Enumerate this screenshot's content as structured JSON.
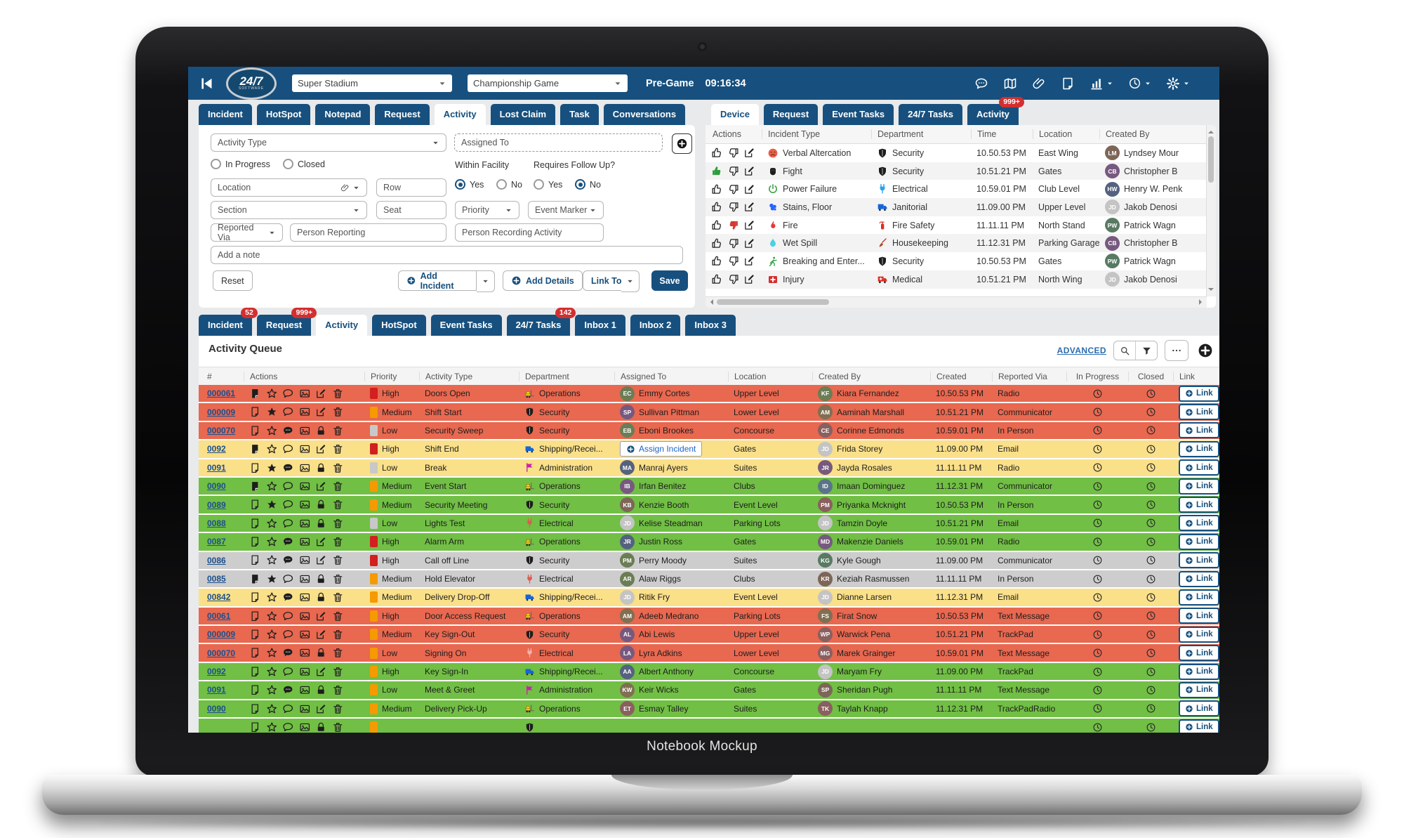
{
  "footer_label": "Notebook Mockup",
  "colors": {
    "navy": "#17507e",
    "badge_red": "#d32f2f",
    "row_red": "#e86850",
    "row_yellow": "#fae089",
    "row_green": "#71bf45",
    "row_gray": "#cdcdcd",
    "chip_high": "#d21f1f",
    "chip_medium": "#f59a00",
    "chip_low": "#c8c8c8"
  },
  "topbar": {
    "brand": "24/7",
    "brand_sub": "SOFTWARE",
    "venue_select": "Super Stadium",
    "event_select": "Championship Game",
    "phase_label": "Pre-Game",
    "clock": "09:16:34",
    "icons": [
      "chat-bubble-icon",
      "map-icon",
      "paperclip-icon",
      "notepad-icon",
      "chart-icon",
      "clock-icon",
      "gear-icon"
    ]
  },
  "left_panel": {
    "tabs": [
      {
        "label": "Incident"
      },
      {
        "label": "HotSpot"
      },
      {
        "label": "Notepad"
      },
      {
        "label": "Request"
      },
      {
        "label": "Activity",
        "active": true
      },
      {
        "label": "Lost Claim"
      },
      {
        "label": "Task"
      },
      {
        "label": "Conversations"
      }
    ],
    "form": {
      "activity_type_placeholder": "Activity Type",
      "assigned_to_placeholder": "Assigned To",
      "in_progress_label": "In Progress",
      "closed_label": "Closed",
      "within_facility_label": "Within Facility",
      "requires_follow_up_label": "Requires Follow Up?",
      "location_placeholder": "Location",
      "row_placeholder": "Row",
      "section_placeholder": "Section",
      "seat_placeholder": "Seat",
      "priority_placeholder": "Priority",
      "event_marker_placeholder": "Event Marker",
      "reported_via_placeholder": "Reported Via",
      "person_reporting_placeholder": "Person Reporting",
      "person_recording_placeholder": "Person Recording Activity",
      "note_placeholder": "Add a note",
      "yes_label": "Yes",
      "no_label": "No",
      "within_facility_value": "Yes",
      "requires_follow_up_value": "No",
      "reset_label": "Reset",
      "add_incident_label": "Add Incident",
      "add_details_label": "Add Details",
      "link_to_label": "Link To",
      "save_label": "Save"
    }
  },
  "device_panel": {
    "tabs": [
      {
        "label": "Device",
        "active": true
      },
      {
        "label": "Request"
      },
      {
        "label": "Event Tasks"
      },
      {
        "label": "24/7 Tasks"
      },
      {
        "label": "Activity",
        "badge": "999+"
      }
    ],
    "columns": [
      "Actions",
      "Incident Type",
      "Department",
      "Time",
      "Location",
      "Created By"
    ],
    "rows": [
      {
        "vote": "none",
        "incident": "Verbal Altercation",
        "incident_icon": "angry-face",
        "dept": "Security",
        "dept_icon": "shield",
        "dept_color": "#1d1d1d",
        "time": "10.50.53 PM",
        "location": "East Wing",
        "created_by": "Lyndsey Mour",
        "avatar": ""
      },
      {
        "vote": "up",
        "incident": "Fight",
        "incident_icon": "fist",
        "dept": "Security",
        "dept_icon": "shield",
        "dept_color": "#1d1d1d",
        "time": "10.51.21 PM",
        "location": "Gates",
        "created_by": "Christopher B",
        "avatar": ""
      },
      {
        "vote": "none",
        "incident": "Power Failure",
        "incident_icon": "power",
        "dept": "Electrical",
        "dept_icon": "plug",
        "dept_color": "#29a3e8",
        "time": "10.59.01 PM",
        "location": "Club Level",
        "created_by": "Henry W. Penk",
        "avatar": ""
      },
      {
        "vote": "none",
        "incident": "Stains, Floor",
        "incident_icon": "stain",
        "dept": "Janitorial",
        "dept_icon": "truck",
        "dept_color": "#1565d8",
        "time": "11.09.00 PM",
        "location": "Upper Level",
        "created_by": "Jakob Denosi",
        "avatar": "JD"
      },
      {
        "vote": "down",
        "incident": "Fire",
        "incident_icon": "flame",
        "dept": "Fire Safety",
        "dept_icon": "extinguisher",
        "dept_color": "#d93025",
        "time": "11.11.11 PM",
        "location": "North Stand",
        "created_by": "Patrick Wagn",
        "avatar": ""
      },
      {
        "vote": "none",
        "incident": "Wet Spill",
        "incident_icon": "droplet",
        "dept": "Housekeeping",
        "dept_icon": "broom",
        "dept_color": "#b0492f",
        "time": "11.12.31 PM",
        "location": "Parking Garage",
        "created_by": "Christopher B",
        "avatar": ""
      },
      {
        "vote": "none",
        "incident": "Breaking and Enter...",
        "incident_icon": "runner",
        "dept": "Security",
        "dept_icon": "shield",
        "dept_color": "#1d1d1d",
        "time": "10.50.53 PM",
        "location": "Gates",
        "created_by": "Patrick Wagn",
        "avatar": ""
      },
      {
        "vote": "none",
        "incident": "Injury",
        "incident_icon": "medical-cross",
        "dept": "Medical",
        "dept_icon": "ambulance",
        "dept_color": "#d93025",
        "time": "10.51.21 PM",
        "location": "North Wing",
        "created_by": "Jakob Denosi",
        "avatar": "JD"
      }
    ]
  },
  "queue_panel": {
    "tabs": [
      {
        "label": "Incident",
        "badge": "52"
      },
      {
        "label": "Request",
        "badge": "999+"
      },
      {
        "label": "Activity",
        "active": true
      },
      {
        "label": "HotSpot"
      },
      {
        "label": "Event Tasks"
      },
      {
        "label": "24/7 Tasks",
        "badge": "142"
      },
      {
        "label": "Inbox 1"
      },
      {
        "label": "Inbox 2"
      },
      {
        "label": "Inbox 3"
      }
    ],
    "title": "Activity Queue",
    "advanced_label": "ADVANCED",
    "columns": [
      "#",
      "Actions",
      "Priority",
      "Activity Type",
      "Department",
      "Assigned To",
      "Location",
      "Created By",
      "Created",
      "Reported Via",
      "In Progress",
      "Closed",
      "Link"
    ],
    "link_label": "Link",
    "assign_button_label": "Assign Incident",
    "rows": [
      {
        "id": "000061",
        "bg": "red",
        "actions": [
          "note-filled",
          "star",
          "chat",
          "image",
          "edit",
          "trash"
        ],
        "priority": "High",
        "chip": "#d21f1f",
        "type": "Doors Open",
        "dept": "Operations",
        "dept_icon": "forklift",
        "dept_color": "",
        "assigned": "Emmy Cortes",
        "assigned_avatar": "",
        "location": "Upper Level",
        "created_by": "Kiara Fernandez",
        "created_by_avatar": "",
        "created": "10.50.53 PM",
        "via": "Radio"
      },
      {
        "id": "000009",
        "bg": "red",
        "actions": [
          "note",
          "star-filled",
          "chat",
          "image",
          "edit",
          "trash"
        ],
        "priority": "Medium",
        "chip": "#f59a00",
        "type": "Shift Start",
        "dept": "Security",
        "dept_icon": "shield",
        "dept_color": "#1d1d1d",
        "assigned": "Sullivan Pittman",
        "assigned_avatar": "",
        "location": "Lower Level",
        "created_by": "Aaminah Marshall",
        "created_by_avatar": "",
        "created": "10.51.21 PM",
        "via": "Communicator"
      },
      {
        "id": "000070",
        "bg": "red",
        "actions": [
          "note",
          "star",
          "chat-filled",
          "image",
          "lock",
          "trash"
        ],
        "priority": "Low",
        "chip": "#c8c8c8",
        "type": "Security Sweep",
        "dept": "Security",
        "dept_icon": "shield",
        "dept_color": "#1d1d1d",
        "assigned": "Eboni Brookes",
        "assigned_avatar": "",
        "location": "Concourse",
        "created_by": "Corinne Edmonds",
        "created_by_avatar": "",
        "created": "10.59.01 PM",
        "via": "In Person"
      },
      {
        "id": "0092",
        "bg": "yellow",
        "actions": [
          "note-filled",
          "star",
          "chat",
          "image",
          "edit",
          "trash"
        ],
        "priority": "High",
        "chip": "#d21f1f",
        "type": "Shift End",
        "dept": "Shipping/Recei...",
        "dept_icon": "truck",
        "dept_color": "#1565d8",
        "assigned": "",
        "assign_button": true,
        "location": "Gates",
        "created_by": "Frida Storey",
        "created_by_avatar": "JD",
        "created": "11.09.00 PM",
        "via": "Email"
      },
      {
        "id": "0091",
        "bg": "yellow",
        "actions": [
          "note",
          "star-filled",
          "chat-filled",
          "image",
          "lock",
          "trash"
        ],
        "priority": "Low",
        "chip": "#c8c8c8",
        "type": "Break",
        "dept": "Administration",
        "dept_icon": "flag",
        "dept_color": "#cc1fae",
        "assigned": "Manraj Ayers",
        "assigned_avatar": "",
        "location": "Suites",
        "created_by": "Jayda Rosales",
        "created_by_avatar": "",
        "created": "11.11.11 PM",
        "via": "Radio"
      },
      {
        "id": "0090",
        "bg": "green",
        "actions": [
          "note-filled",
          "star",
          "chat",
          "image",
          "edit",
          "trash"
        ],
        "priority": "Medium",
        "chip": "#f59a00",
        "type": "Event Start",
        "dept": "Operations",
        "dept_icon": "forklift",
        "dept_color": "",
        "assigned": "Irfan Benitez",
        "assigned_avatar": "",
        "location": "Clubs",
        "created_by": "Imaan Dominguez",
        "created_by_avatar": "",
        "created": "11.12.31 PM",
        "via": "Communicator"
      },
      {
        "id": "0089",
        "bg": "green",
        "actions": [
          "note",
          "star-filled",
          "chat",
          "image",
          "lock",
          "trash"
        ],
        "priority": "Medium",
        "chip": "#f59a00",
        "type": "Security Meeting",
        "dept": "Security",
        "dept_icon": "shield",
        "dept_color": "#1d1d1d",
        "assigned": "Kenzie Booth",
        "assigned_avatar": "",
        "location": "Event Level",
        "created_by": "Priyanka Mcknight",
        "created_by_avatar": "",
        "created": "10.50.53 PM",
        "via": "In Person"
      },
      {
        "id": "0088",
        "bg": "green",
        "actions": [
          "note",
          "star",
          "chat",
          "image",
          "lock",
          "trash"
        ],
        "priority": "Low",
        "chip": "#c8c8c8",
        "type": "Lights Test",
        "dept": "Electrical",
        "dept_icon": "plug",
        "dept_color": "#e05a4e",
        "assigned": "Kelise Steadman",
        "assigned_avatar": "JD",
        "location": "Parking Lots",
        "created_by": "Tamzin Doyle",
        "created_by_avatar": "JD",
        "created": "10.51.21 PM",
        "via": "Email"
      },
      {
        "id": "0087",
        "bg": "green",
        "actions": [
          "note",
          "star",
          "chat-filled",
          "image",
          "edit",
          "trash"
        ],
        "priority": "High",
        "chip": "#d21f1f",
        "type": "Alarm Arm",
        "dept": "Operations",
        "dept_icon": "forklift",
        "dept_color": "",
        "assigned": "Justin Ross",
        "assigned_avatar": "",
        "location": "Gates",
        "created_by": "Makenzie Daniels",
        "created_by_avatar": "",
        "created": "10.59.01 PM",
        "via": "Radio"
      },
      {
        "id": "0086",
        "bg": "gray",
        "actions": [
          "note",
          "star",
          "chat-filled",
          "image",
          "edit",
          "trash"
        ],
        "priority": "High",
        "chip": "#d21f1f",
        "type": "Call off Line",
        "dept": "Security",
        "dept_icon": "shield",
        "dept_color": "#1d1d1d",
        "assigned": "Perry Moody",
        "assigned_avatar": "",
        "location": "Suites",
        "created_by": "Kyle Gough",
        "created_by_avatar": "",
        "created": "11.09.00 PM",
        "via": "Communicator"
      },
      {
        "id": "0085",
        "bg": "gray",
        "actions": [
          "note-filled",
          "star-filled",
          "chat",
          "image",
          "lock",
          "trash"
        ],
        "priority": "Medium",
        "chip": "#f59a00",
        "type": "Hold Elevator",
        "dept": "Electrical",
        "dept_icon": "plug",
        "dept_color": "#e05a4e",
        "assigned": "Alaw Riggs",
        "assigned_avatar": "",
        "location": "Clubs",
        "created_by": "Keziah Rasmussen",
        "created_by_avatar": "",
        "created": "11.11.11 PM",
        "via": "In Person"
      },
      {
        "id": "00842",
        "bg": "yellow",
        "actions": [
          "note",
          "star",
          "chat-filled",
          "image",
          "lock",
          "trash"
        ],
        "priority": "Medium",
        "chip": "#f59a00",
        "type": "Delivery Drop-Off",
        "dept": "Shipping/Recei...",
        "dept_icon": "truck",
        "dept_color": "#1565d8",
        "assigned": "Ritik Fry",
        "assigned_avatar": "JD",
        "location": "Event Level",
        "created_by": "Dianne Larsen",
        "created_by_avatar": "JD",
        "created": "11.12.31 PM",
        "via": "Email"
      },
      {
        "id": "00061",
        "bg": "red",
        "actions": [
          "note",
          "star",
          "chat",
          "image",
          "edit",
          "trash"
        ],
        "priority": "High",
        "chip": "#f59a00",
        "type": "Door Access Request",
        "dept": "Operations",
        "dept_icon": "forklift",
        "dept_color": "",
        "assigned": "Adeeb Medrano",
        "assigned_avatar": "",
        "location": "Parking Lots",
        "created_by": "Firat Snow",
        "created_by_avatar": "",
        "created": "10.50.53 PM",
        "via": "Text Message"
      },
      {
        "id": "000009",
        "bg": "red",
        "actions": [
          "note",
          "star",
          "chat",
          "image",
          "edit",
          "trash"
        ],
        "priority": "Medium",
        "chip": "#f59a00",
        "type": "Key Sign-Out",
        "dept": "Security",
        "dept_icon": "shield",
        "dept_color": "#1d1d1d",
        "assigned": "Abi Lewis",
        "assigned_avatar": "",
        "location": "Upper Level",
        "created_by": "Warwick Pena",
        "created_by_avatar": "",
        "created": "10.51.21 PM",
        "via": "TrackPad"
      },
      {
        "id": "000070",
        "bg": "red",
        "actions": [
          "note",
          "star",
          "chat-filled",
          "image",
          "lock",
          "trash"
        ],
        "priority": "Low",
        "chip": "#f59a00",
        "type": "Signing On",
        "dept": "Electrical",
        "dept_icon": "plug",
        "dept_color": "#f0b1a9",
        "assigned": "Lyra Adkins",
        "assigned_avatar": "",
        "location": "Lower Level",
        "created_by": "Marek Grainger",
        "created_by_avatar": "",
        "created": "10.59.01 PM",
        "via": "Text Message"
      },
      {
        "id": "0092",
        "bg": "green",
        "actions": [
          "note",
          "star",
          "chat",
          "image",
          "edit",
          "trash"
        ],
        "priority": "High",
        "chip": "#f59a00",
        "type": "Key Sign-In",
        "dept": "Shipping/Recei...",
        "dept_icon": "truck",
        "dept_color": "#1565d8",
        "assigned": "Albert Anthony",
        "assigned_avatar": "",
        "location": "Concourse",
        "created_by": "Maryam Fry",
        "created_by_avatar": "JD",
        "created": "11.09.00 PM",
        "via": "TrackPad"
      },
      {
        "id": "0091",
        "bg": "green",
        "actions": [
          "note",
          "star",
          "chat-filled",
          "image",
          "lock",
          "trash"
        ],
        "priority": "Low",
        "chip": "#f59a00",
        "type": "Meet & Greet",
        "dept": "Administration",
        "dept_icon": "flag",
        "dept_color": "#cc1fae",
        "assigned": "Keir Wicks",
        "assigned_avatar": "",
        "location": "Gates",
        "created_by": "Sheridan Pugh",
        "created_by_avatar": "",
        "created": "11.11.11 PM",
        "via": "Text Message"
      },
      {
        "id": "0090",
        "bg": "green",
        "actions": [
          "note",
          "star",
          "chat",
          "image",
          "edit",
          "trash"
        ],
        "priority": "Medium",
        "chip": "#f59a00",
        "type": "Delivery Pick-Up",
        "dept": "Operations",
        "dept_icon": "forklift",
        "dept_color": "",
        "assigned": "Esmay Talley",
        "assigned_avatar": "",
        "location": "Suites",
        "created_by": "Taylah Knapp",
        "created_by_avatar": "",
        "created": "11.12.31 PM",
        "via": "TrackPadRadio"
      },
      {
        "id": "",
        "bg": "green",
        "partial": true,
        "actions": [
          "note",
          "star",
          "chat",
          "image",
          "lock",
          "trash"
        ],
        "priority": "",
        "chip": "#f59a00",
        "type": "",
        "dept": "",
        "dept_icon": "shield",
        "dept_color": "#1d1d1d",
        "assigned": "",
        "assigned_avatar": "",
        "location": "",
        "created_by": "",
        "created_by_avatar": "",
        "created": "",
        "via": ""
      }
    ]
  }
}
